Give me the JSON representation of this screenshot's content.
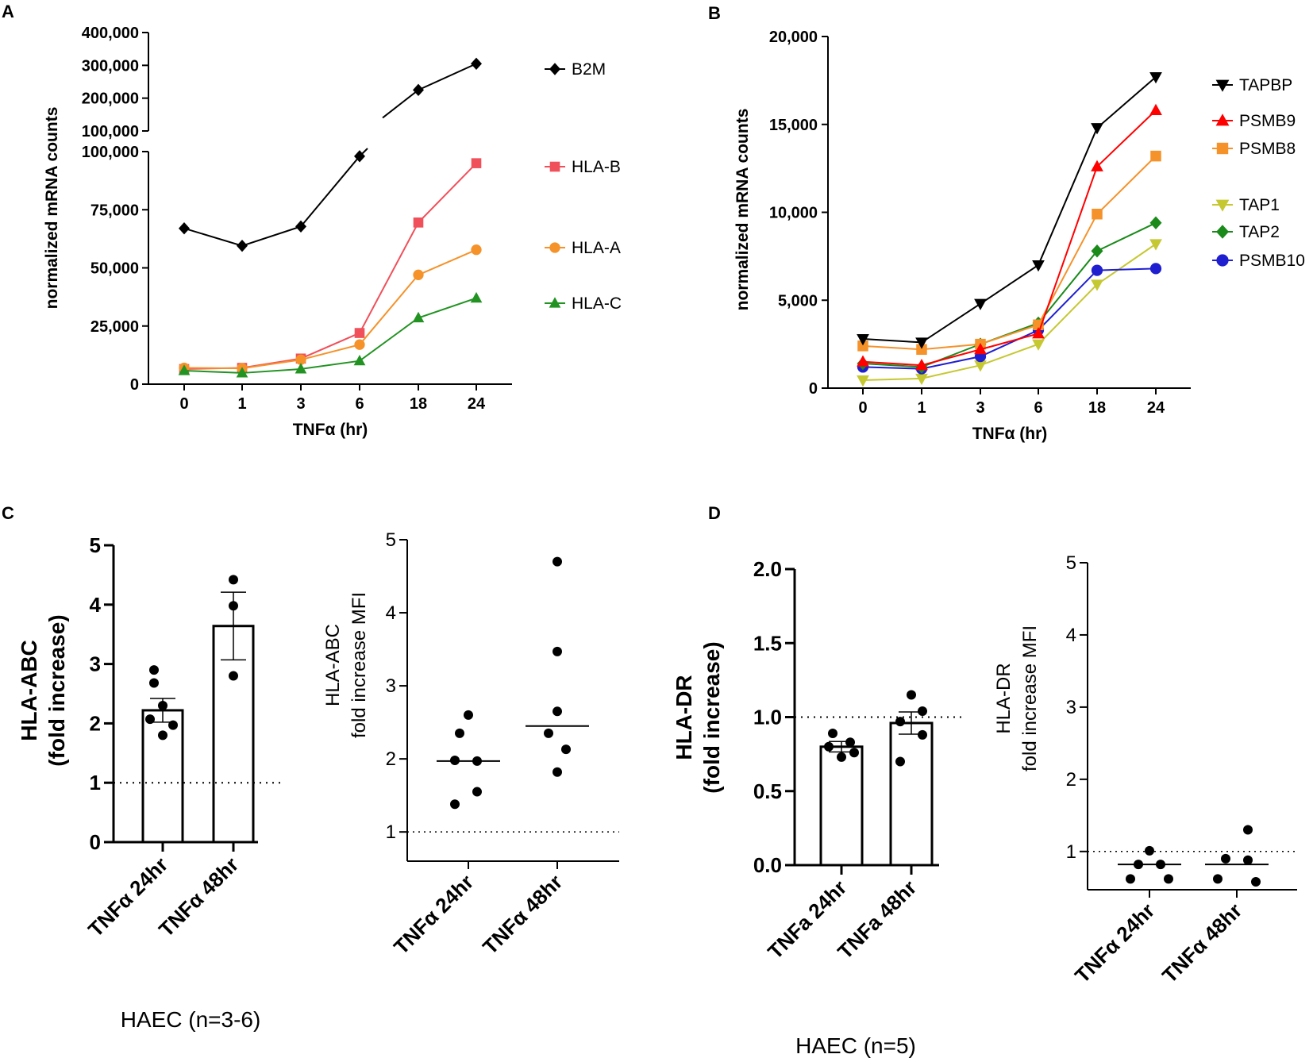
{
  "figure": {
    "captions": {
      "C": "HAEC (n=3-6)",
      "D": "HAEC (n=5)"
    }
  },
  "chart_data": [
    {
      "panel": "A",
      "type": "line",
      "title": "A",
      "xlabel": "TNFα (hr)",
      "ylabel": "normalized mRNA counts",
      "categories": [
        "0",
        "1",
        "3",
        "6",
        "18",
        "24"
      ],
      "y_ticks_lower": [
        "0",
        "25,000",
        "50,000",
        "75,000",
        "100,000"
      ],
      "y_ticks_upper": [
        "100,000",
        "200,000",
        "300,000",
        "400,000"
      ],
      "ylim_lower": [
        0,
        100000
      ],
      "ylim_upper": [
        100000,
        400000
      ],
      "axis_break": true,
      "series": [
        {
          "name": "B2M",
          "color": "#000000",
          "marker": "diamond",
          "values": [
            67000,
            59500,
            67800,
            98000,
            225000,
            305000
          ]
        },
        {
          "name": "HLA-B",
          "color": "#f0505a",
          "marker": "square",
          "values": [
            6500,
            7000,
            11000,
            22000,
            69500,
            95000
          ]
        },
        {
          "name": "HLA-A",
          "color": "#f5922a",
          "marker": "circle",
          "values": [
            7000,
            6800,
            10500,
            17000,
            47000,
            57800
          ]
        },
        {
          "name": "HLA-C",
          "color": "#229322",
          "marker": "triangle-up",
          "values": [
            5800,
            4800,
            6500,
            10000,
            28500,
            37000
          ]
        }
      ]
    },
    {
      "panel": "B",
      "type": "line",
      "title": "B",
      "xlabel": "TNFα (hr)",
      "ylabel": "normalized mRNA counts",
      "categories": [
        "0",
        "1",
        "3",
        "6",
        "18",
        "24"
      ],
      "y_ticks": [
        "0",
        "5,000",
        "10,000",
        "15,000",
        "20,000"
      ],
      "ylim": [
        0,
        20000
      ],
      "series": [
        {
          "name": "TAPBP",
          "color": "#000000",
          "marker": "triangle-down",
          "values": [
            2800,
            2600,
            4800,
            7000,
            14800,
            17700
          ]
        },
        {
          "name": "PSMB9",
          "color": "#ff0000",
          "marker": "triangle-up",
          "values": [
            1500,
            1300,
            2200,
            3100,
            12600,
            15800
          ]
        },
        {
          "name": "PSMB8",
          "color": "#f5922a",
          "marker": "square",
          "values": [
            2400,
            2200,
            2500,
            3600,
            9900,
            13200
          ]
        },
        {
          "name": "TAP1",
          "color": "#c6c832",
          "marker": "triangle-down",
          "values": [
            450,
            550,
            1300,
            2500,
            5900,
            8200
          ]
        },
        {
          "name": "TAP2",
          "color": "#1a8a1a",
          "marker": "diamond",
          "values": [
            1400,
            1200,
            2500,
            3700,
            7800,
            9400
          ]
        },
        {
          "name": "PSMB10",
          "color": "#1f1fd0",
          "marker": "circle",
          "values": [
            1200,
            1100,
            1800,
            3300,
            6700,
            6800
          ]
        }
      ]
    },
    {
      "panel": "C-left",
      "type": "bar",
      "title": "C",
      "ylabel": [
        "HLA-ABC",
        "(fold increase)"
      ],
      "categories": [
        "TNFα 24hr",
        "TNFα 48hr"
      ],
      "y_ticks": [
        "0",
        "1",
        "2",
        "3",
        "4",
        "5"
      ],
      "ylim": [
        0,
        5
      ],
      "reference_line": 1,
      "values": [
        2.22,
        3.64
      ],
      "sem": [
        0.2,
        0.57
      ],
      "points": [
        [
          2.9,
          2.68,
          2.3,
          2.07,
          1.97,
          1.8
        ],
        [
          4.42,
          3.98,
          2.8
        ]
      ]
    },
    {
      "panel": "C-right",
      "type": "scatter",
      "ylabel": [
        "HLA-ABC",
        "fold increase  MFI"
      ],
      "categories": [
        "TNFα 24hr",
        "TNFα 48hr"
      ],
      "y_ticks": [
        "1",
        "2",
        "3",
        "4",
        "5"
      ],
      "ylim": [
        0.6,
        5
      ],
      "reference_line": 1,
      "medians": [
        1.97,
        2.45
      ],
      "points": [
        [
          2.6,
          2.35,
          1.98,
          1.97,
          1.55,
          1.38
        ],
        [
          4.7,
          3.47,
          2.65,
          2.35,
          2.13,
          1.82
        ]
      ]
    },
    {
      "panel": "D-left",
      "type": "bar",
      "title": "D",
      "ylabel": [
        "HLA-DR",
        "(fold increase)"
      ],
      "categories": [
        "TNFa 24hr",
        "TNFa 48hr"
      ],
      "y_ticks": [
        "0.0",
        "0.5",
        "1.0",
        "1.5",
        "2.0"
      ],
      "ylim": [
        0,
        2
      ],
      "reference_line": 1,
      "values": [
        0.8,
        0.96
      ],
      "sem": [
        0.035,
        0.075
      ],
      "points": [
        [
          0.89,
          0.83,
          0.8,
          0.76,
          0.73
        ],
        [
          1.15,
          1.04,
          0.97,
          0.88,
          0.7
        ]
      ]
    },
    {
      "panel": "D-right",
      "type": "scatter",
      "ylabel": [
        "HLA-DR",
        "fold increase  MFI"
      ],
      "categories": [
        "TNFα 24hr",
        "TNFα 48hr"
      ],
      "y_ticks": [
        "1",
        "2",
        "3",
        "4",
        "5"
      ],
      "ylim": [
        0.47,
        5
      ],
      "reference_line": 1,
      "medians": [
        0.82,
        0.82
      ],
      "points": [
        [
          1.01,
          0.82,
          0.82,
          0.62,
          0.62
        ],
        [
          1.3,
          0.9,
          0.88,
          0.62,
          0.58
        ]
      ]
    }
  ]
}
